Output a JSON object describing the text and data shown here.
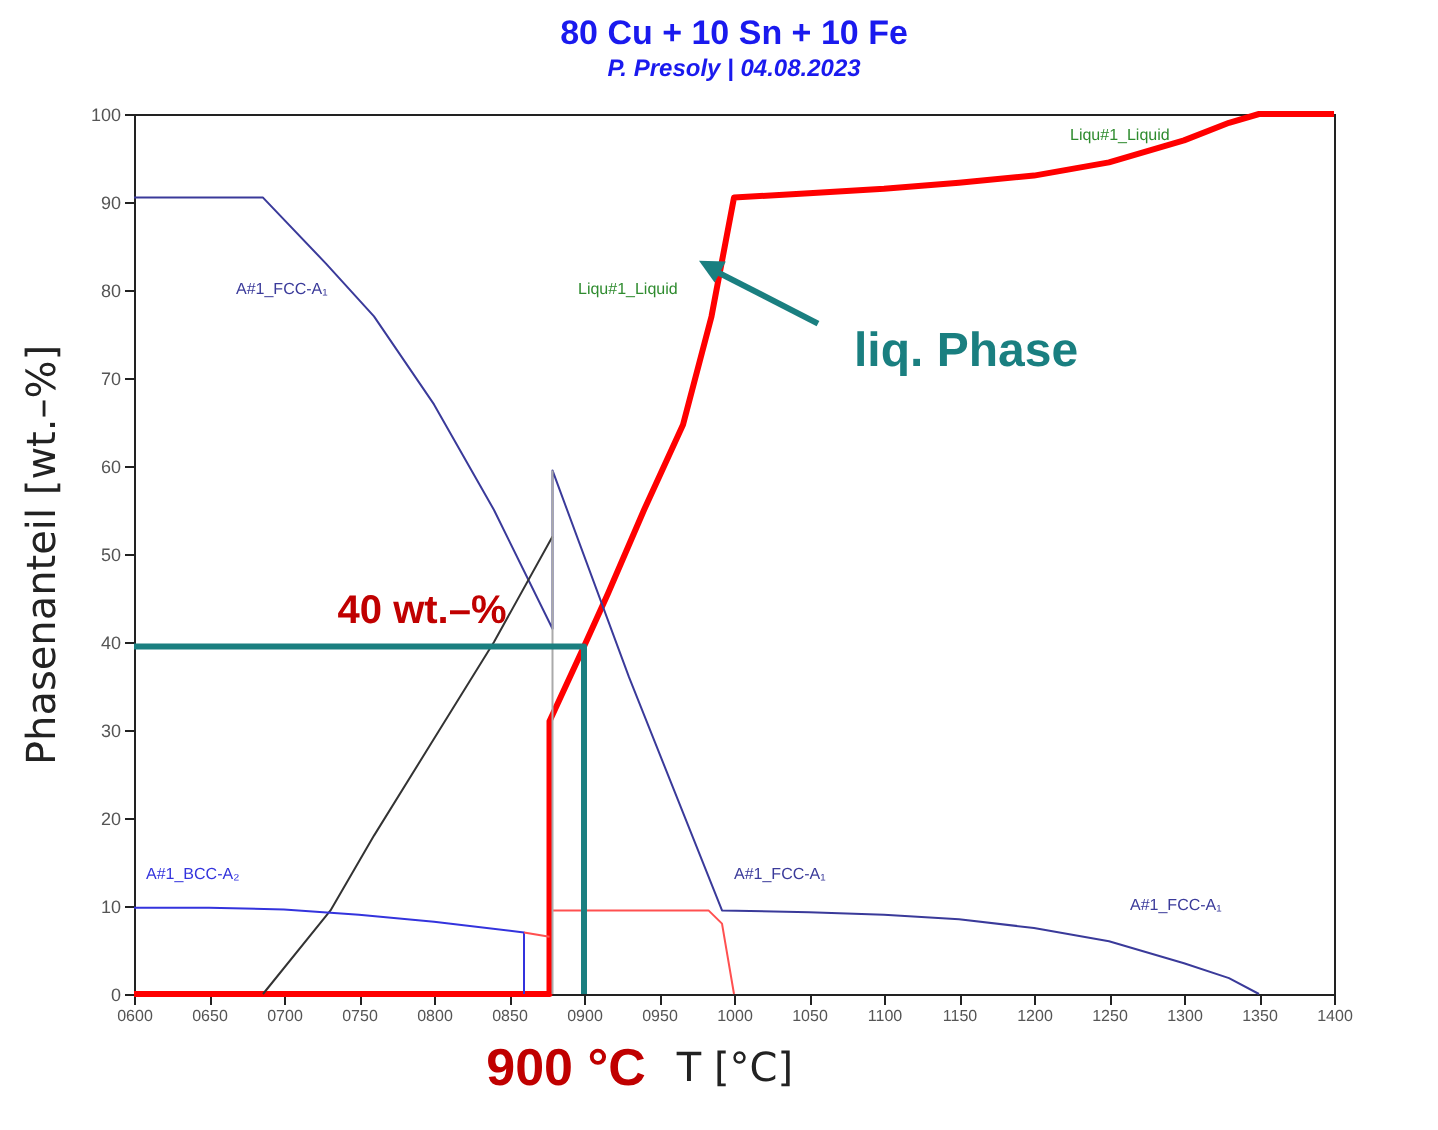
{
  "chart_data": {
    "type": "line",
    "title": "80 Cu  +  10 Sn  +  10 Fe",
    "subtitle": "P. Presoly  |  04.08.2023",
    "xlabel": "T [°C]",
    "ylabel": "Phasenanteil  [wt.–%]",
    "xlim": [
      600,
      1400
    ],
    "ylim": [
      0,
      100
    ],
    "xticks": [
      {
        "value": 600,
        "label": "0600"
      },
      {
        "value": 650,
        "label": "0650"
      },
      {
        "value": 700,
        "label": "0700"
      },
      {
        "value": 750,
        "label": "0750"
      },
      {
        "value": 800,
        "label": "0800"
      },
      {
        "value": 850,
        "label": "0850"
      },
      {
        "value": 900,
        "label": "0900"
      },
      {
        "value": 950,
        "label": "0950"
      },
      1000,
      1050,
      1100,
      1150,
      1200,
      1250,
      1300,
      1350,
      1400
    ],
    "yticks": [
      0,
      10,
      20,
      30,
      40,
      50,
      60,
      70,
      80,
      90,
      100
    ],
    "grid": false,
    "marker": "none",
    "line_style": "solid",
    "series": [
      {
        "color": "#ff0000",
        "x": [
          600,
          877,
          877,
          900,
          916,
          940,
          966,
          985,
          1000,
          1050,
          1100,
          1150,
          1200,
          1250,
          1300,
          1330,
          1350,
          1400
        ],
        "values": [
          0,
          0,
          31,
          39.5,
          45.5,
          55,
          64.7,
          77,
          90.5,
          91,
          91.5,
          92.2,
          93,
          94.5,
          97,
          99,
          100,
          100
        ]
      },
      {
        "color": "#3a3a9a",
        "x": [
          600,
          686,
          728,
          760,
          800,
          840,
          879,
          879,
          930,
          992,
          1050,
          1100,
          1150,
          1200,
          1250,
          1300,
          1330,
          1350
        ],
        "values": [
          90.5,
          90.5,
          83,
          77,
          67,
          55,
          41.5,
          59.5,
          36,
          9.5,
          9.3,
          9,
          8.5,
          7.5,
          6,
          3.5,
          1.8,
          0
        ]
      },
      {
        "color": "#333333",
        "x": [
          686,
          731,
          760,
          800,
          840,
          879
        ],
        "values": [
          0,
          9.5,
          18,
          29,
          40,
          52
        ]
      },
      {
        "color": "#3333dd",
        "x": [
          600,
          650,
          700,
          750,
          800,
          860,
          860
        ],
        "values": [
          9.8,
          9.8,
          9.6,
          9,
          8.2,
          7,
          0
        ]
      },
      {
        "color": "#ff5050",
        "x": [
          860,
          877
        ],
        "values": [
          7,
          6.5
        ]
      },
      {
        "color": "#ff5050",
        "x": [
          879,
          983,
          992,
          1000
        ],
        "values": [
          9.5,
          9.5,
          8,
          0
        ]
      },
      {
        "color": "#aaaaaa",
        "x": [
          879,
          879
        ],
        "values": [
          0,
          59.5
        ]
      },
      {
        "color": "#1a7f80",
        "x": [
          600,
          900,
          900
        ],
        "values": [
          39.5,
          39.5,
          0
        ]
      }
    ],
    "annotations": [
      "A#1_FCC-A₁",
      "Liqu#1_Liquid",
      "Liqu#1_Liquid",
      "A#1_BCC-A₂",
      "A#1_FCC-A₁",
      "A#1_FCC-A₁",
      "40 wt.–%",
      {
        "text": "liq. Phase",
        "x": 990,
        "y": 81.5
      },
      "900 °C"
    ]
  }
}
